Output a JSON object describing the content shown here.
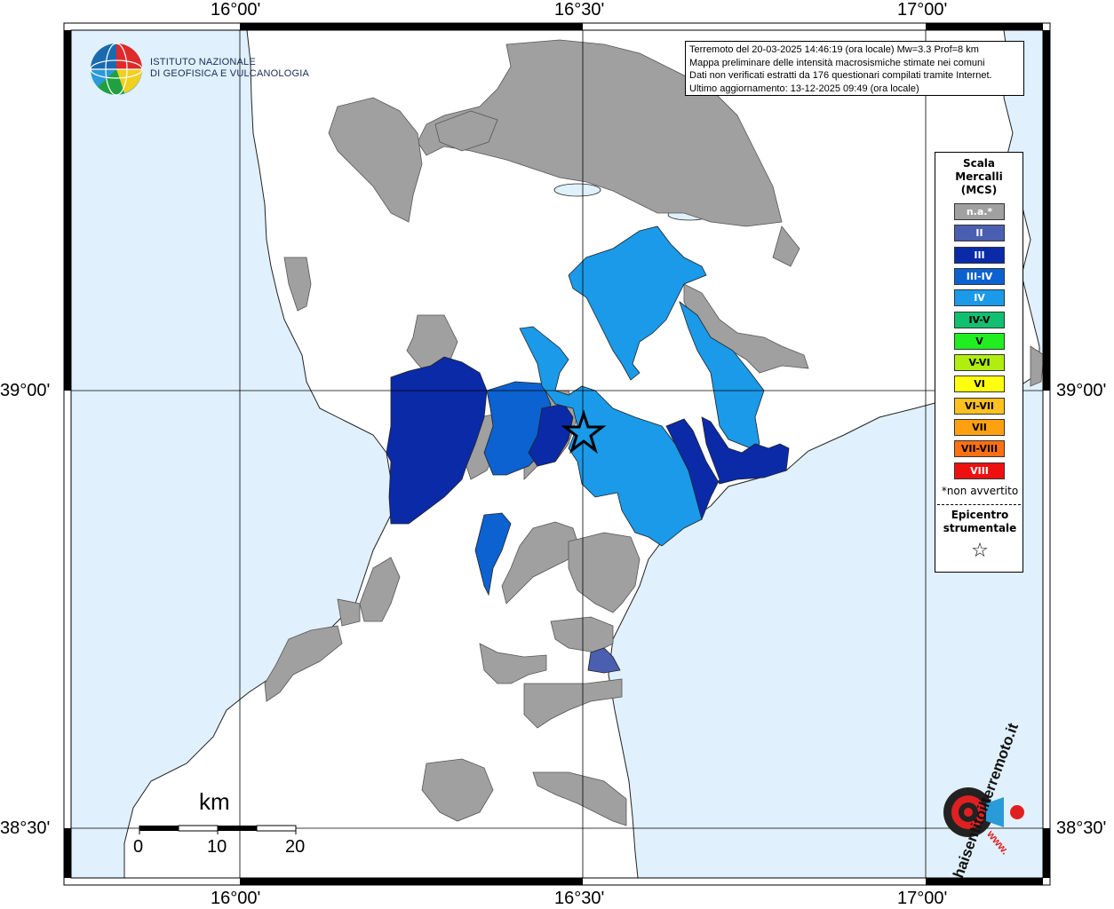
{
  "info": {
    "line1": "Terremoto del 20-03-2025 14:46:19 (ora locale) Mw=3.3 Prof=8 km",
    "line2": "Mappa preliminare delle intensità macrosismiche stimate nei comuni",
    "line3": "Dati non verificati estratti da 176 questionari compilati tramite Internet.",
    "line4": "Ultimo aggiornamento: 13-12-2025 09:49 (ora locale)"
  },
  "logo": {
    "line1": "ISTITUTO NAZIONALE",
    "line2": "DI GEOFISICA E VULCANOLOGIA"
  },
  "coords": {
    "top_lon_1": "16°00'",
    "top_lon_2": "16°30'",
    "top_lon_3": "17°00'",
    "bottom_lon_1": "16°00'",
    "bottom_lon_2": "16°30'",
    "bottom_lon_3": "17°00'",
    "left_lat_1": "39°00'",
    "left_lat_2": "38°30'",
    "right_lat_1": "39°00'",
    "right_lat_2": "38°30'"
  },
  "scale_bar": {
    "unit": "km",
    "tick_0": "0",
    "tick_10": "10",
    "tick_20": "20"
  },
  "legend": {
    "title1": "Scala",
    "title2": "Mercalli",
    "title3": "(MCS)",
    "items": [
      {
        "label": "n.a.*",
        "color": "#a0a0a0",
        "text_color": "#ffffff"
      },
      {
        "label": "II",
        "color": "#4a5fb0",
        "text_color": "#ffffff"
      },
      {
        "label": "III",
        "color": "#0a2aa8",
        "text_color": "#ffffff"
      },
      {
        "label": "III-IV",
        "color": "#0b62d0",
        "text_color": "#ffffff"
      },
      {
        "label": "IV",
        "color": "#1a9ae8",
        "text_color": "#ffffff"
      },
      {
        "label": "IV-V",
        "color": "#10c070",
        "text_color": "#000000"
      },
      {
        "label": "V",
        "color": "#20ee20",
        "text_color": "#000000"
      },
      {
        "label": "V-VI",
        "color": "#b0ee10",
        "text_color": "#000000"
      },
      {
        "label": "VI",
        "color": "#ffff10",
        "text_color": "#000000"
      },
      {
        "label": "VI-VII",
        "color": "#ffc020",
        "text_color": "#000000"
      },
      {
        "label": "VII",
        "color": "#ffa010",
        "text_color": "#000000"
      },
      {
        "label": "VII-VIII",
        "color": "#ff7010",
        "text_color": "#000000"
      },
      {
        "label": "VIII",
        "color": "#ee1010",
        "text_color": "#ffffff"
      }
    ],
    "note": "*non avvertito",
    "epi1": "Epicentro",
    "epi2": "strumentale",
    "epi_symbol": "☆"
  },
  "watermark": {
    "main": "haisentitoilterremoto.it",
    "sub": "www."
  },
  "colors": {
    "sea": "#e0f0fc",
    "land": "#ffffff",
    "na": "#a0a0a0"
  }
}
